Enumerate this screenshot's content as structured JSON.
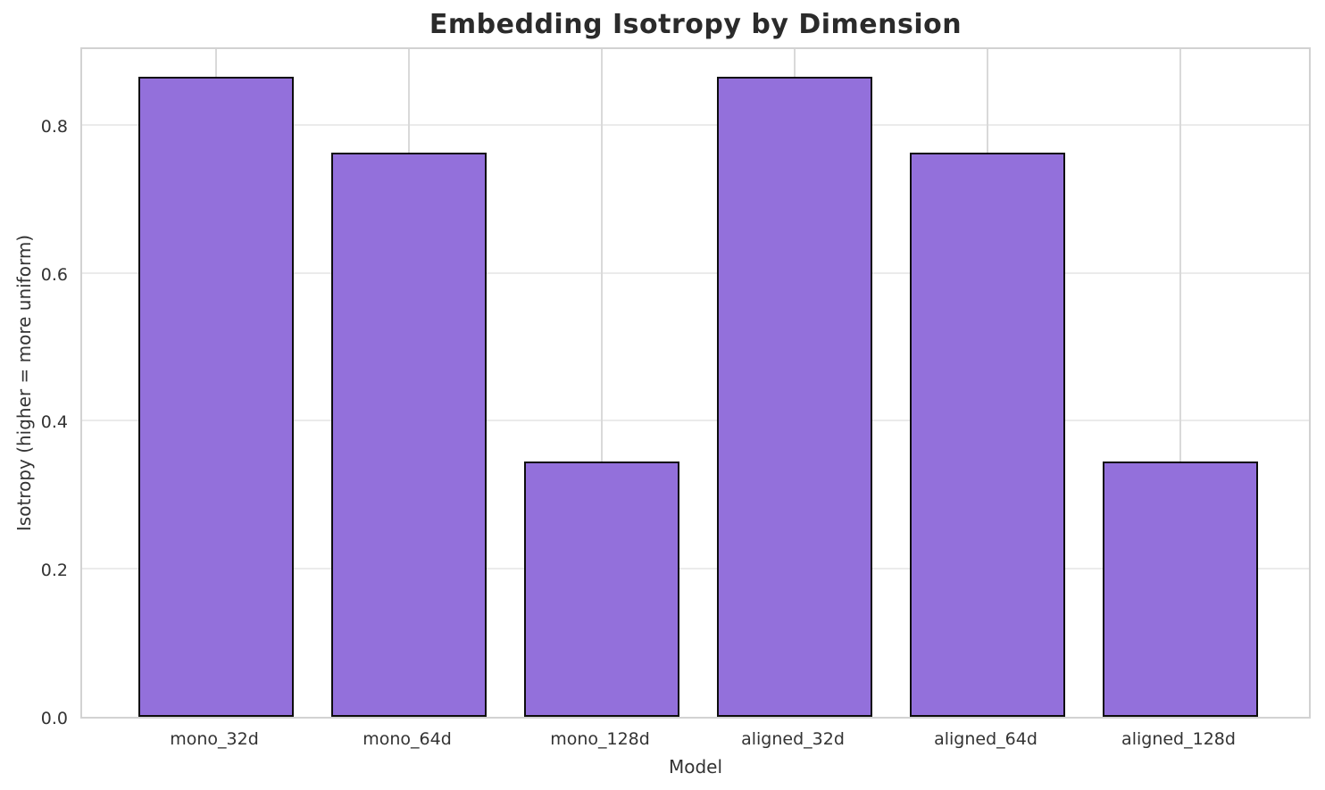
{
  "chart_data": {
    "type": "bar",
    "title": "Embedding Isotropy by Dimension",
    "xlabel": "Model",
    "ylabel": "Isotropy (higher = more uniform)",
    "categories": [
      "mono_32d",
      "mono_64d",
      "mono_128d",
      "aligned_32d",
      "aligned_64d",
      "aligned_128d"
    ],
    "values": [
      0.865,
      0.762,
      0.345,
      0.865,
      0.762,
      0.345
    ],
    "yticks": [
      0.0,
      0.2,
      0.4,
      0.6,
      0.8
    ],
    "ylim": [
      0,
      0.907
    ],
    "grid": true,
    "legend": "none",
    "bar_color": "#9370DB",
    "bar_edge_color": "#0d0d0d",
    "grid_color": "#e6e6e6",
    "spine_color": "#d2d2d2",
    "text_color": "#333333",
    "title_color": "#2b2b2b",
    "background_color": "#ffffff"
  }
}
